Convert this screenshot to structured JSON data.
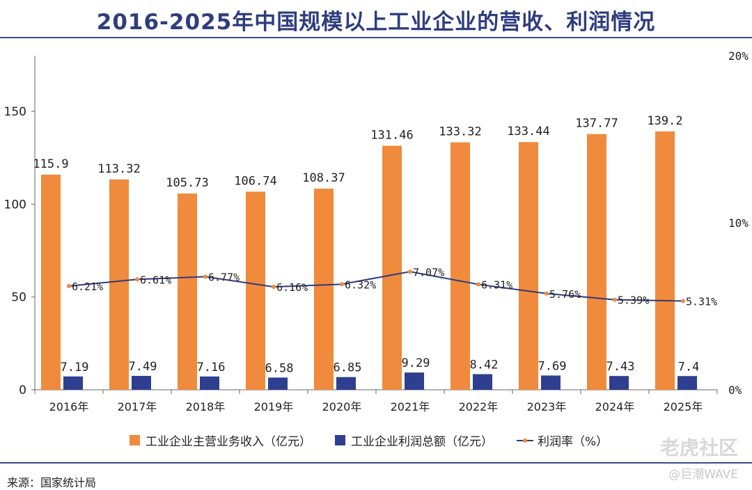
{
  "title": "2016-2025年中国规模以上工业企业的营收、利润情况",
  "source": "来源：国家统计局",
  "watermark": "老虎社区",
  "watermark_sub": "@巨潮WAVE",
  "colors": {
    "revenue": "#f08a3c",
    "profit": "#2e3f8f",
    "margin_line": "#2d3a7c",
    "margin_marker": "#f08a3c"
  },
  "chart_data": {
    "type": "bar",
    "title": "2016-2025年中国规模以上工业企业的营收、利润情况",
    "categories": [
      "2016年",
      "2017年",
      "2018年",
      "2019年",
      "2020年",
      "2021年",
      "2022年",
      "2023年",
      "2024年",
      "2025年"
    ],
    "series": [
      {
        "name": "工业企业主营业务收入（亿元）",
        "type": "bar",
        "axis": "left",
        "values": [
          115.9,
          113.32,
          105.73,
          106.74,
          108.37,
          131.46,
          133.32,
          133.44,
          137.77,
          139.2
        ],
        "labels": [
          "115.9",
          "113.32",
          "105.73",
          "106.74",
          "108.37",
          "131.46",
          "133.32",
          "133.44",
          "137.77",
          "139.2"
        ]
      },
      {
        "name": "工业企业利润总额（亿元）",
        "type": "bar",
        "axis": "left",
        "values": [
          7.19,
          7.49,
          7.16,
          6.58,
          6.85,
          9.29,
          8.42,
          7.69,
          7.43,
          7.4
        ],
        "labels": [
          "7.19",
          "7.49",
          "7.16",
          "6.58",
          "6.85",
          "9.29",
          "8.42",
          "7.69",
          "7.43",
          "7.4"
        ]
      },
      {
        "name": "利润率（%）",
        "type": "line",
        "axis": "right",
        "values": [
          6.21,
          6.61,
          6.77,
          6.16,
          6.32,
          7.07,
          6.31,
          5.76,
          5.39,
          5.31
        ],
        "labels": [
          "6.21%",
          "6.61%",
          "6.77%",
          "6.16%",
          "6.32%",
          "7.07%",
          "6.31%",
          "5.76%",
          "5.39%",
          "5.31%"
        ]
      }
    ],
    "y_left": {
      "range": [
        0,
        180
      ],
      "ticks": [
        0,
        50,
        100,
        150
      ],
      "tick_labels": [
        "0",
        "50",
        "100",
        "150"
      ]
    },
    "y_right": {
      "range": [
        0,
        20
      ],
      "ticks": [
        0,
        10,
        20
      ],
      "tick_labels": [
        "0%",
        "10%",
        "20%"
      ]
    },
    "legend_position": "bottom",
    "grid": false
  }
}
